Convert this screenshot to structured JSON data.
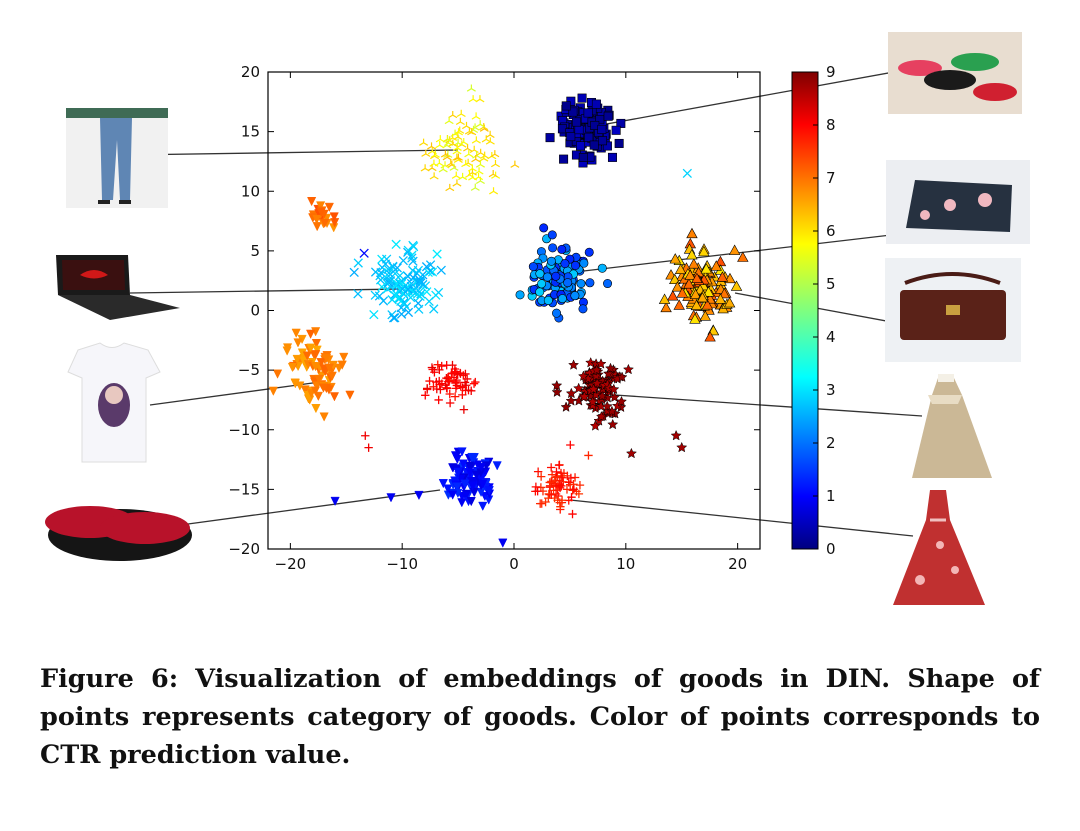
{
  "chart_data": {
    "type": "scatter",
    "xlim": [
      -22,
      22
    ],
    "ylim": [
      -20,
      20
    ],
    "x_ticks": [
      -20,
      -10,
      0,
      10,
      20
    ],
    "y_ticks": [
      -20,
      -15,
      -10,
      -5,
      0,
      5,
      10,
      15,
      20
    ],
    "x_tick_labels": [
      "−20",
      "−10",
      "0",
      "10",
      "20"
    ],
    "y_tick_labels": [
      "−20",
      "−15",
      "−10",
      "−5",
      "0",
      "5",
      "10",
      "15",
      "20"
    ],
    "colorbar": {
      "range": [
        0,
        9
      ],
      "ticks": [
        0,
        1,
        2,
        3,
        4,
        5,
        6,
        7,
        8,
        9
      ],
      "tick_labels": [
        "0",
        "1",
        "2",
        "3",
        "4",
        "5",
        "6",
        "7",
        "8",
        "9"
      ],
      "colormap": "jet",
      "colors": [
        "#00007f",
        "#0000ff",
        "#007fff",
        "#00ffff",
        "#7fff7f",
        "#ffff00",
        "#ff7f00",
        "#ff0000",
        "#7f0000"
      ]
    },
    "clusters": [
      {
        "category": "pants",
        "marker": "tri_up",
        "center": [
          -4.5,
          13.5
        ],
        "spread": [
          3.0,
          3.2
        ],
        "count": 90,
        "value_range": [
          5.2,
          6.2
        ],
        "image": "pants-photo"
      },
      {
        "category": "sneakers",
        "marker": "square",
        "center": [
          6.5,
          15.5
        ],
        "spread": [
          2.4,
          2.2
        ],
        "count": 120,
        "value_range": [
          0.1,
          0.6
        ],
        "image": "sneakers-photo"
      },
      {
        "category": "orange-tri-down",
        "marker": "tri_down",
        "center": [
          -17.2,
          8.0
        ],
        "spread": [
          0.8,
          1.2
        ],
        "count": 25,
        "value_range": [
          6.5,
          7.2
        ],
        "image": null
      },
      {
        "category": "laptop",
        "marker": "x",
        "center": [
          -9.5,
          2.2
        ],
        "spread": [
          2.8,
          2.2
        ],
        "count": 110,
        "value_range": [
          2.6,
          3.2
        ],
        "image": "laptop-photo"
      },
      {
        "category": "phone-case",
        "marker": "circle",
        "center": [
          4.0,
          2.7
        ],
        "spread": [
          2.5,
          2.2
        ],
        "count": 130,
        "value_range": [
          1.4,
          3.0
        ],
        "image": "phone-case-photo"
      },
      {
        "category": "handbag",
        "marker": "triangle",
        "center": [
          16.7,
          2.0
        ],
        "spread": [
          2.2,
          2.8
        ],
        "count": 120,
        "value_range": [
          5.8,
          7.2
        ],
        "image": "handbag-photo"
      },
      {
        "category": "t-shirt",
        "marker": "tri_down",
        "center": [
          -18.0,
          -5.0
        ],
        "spread": [
          2.6,
          2.8
        ],
        "count": 80,
        "value_range": [
          6.4,
          7.0
        ],
        "image": "t-shirt-photo"
      },
      {
        "category": "red-plus",
        "marker": "plus",
        "center": [
          -5.5,
          -6.0
        ],
        "spread": [
          2.0,
          1.6
        ],
        "count": 60,
        "value_range": [
          7.7,
          8.1
        ],
        "image": null
      },
      {
        "category": "coat",
        "marker": "star",
        "center": [
          7.5,
          -6.5
        ],
        "spread": [
          2.4,
          2.2
        ],
        "count": 110,
        "value_range": [
          8.5,
          8.9
        ],
        "image": "coat-photo"
      },
      {
        "category": "slippers",
        "marker": "tri_down",
        "center": [
          -4.0,
          -14.0
        ],
        "spread": [
          2.0,
          1.8
        ],
        "count": 100,
        "value_range": [
          0.8,
          1.6
        ],
        "image": "slippers-photo"
      },
      {
        "category": "red-dress",
        "marker": "plus",
        "center": [
          4.2,
          -14.8
        ],
        "spread": [
          1.8,
          2.0
        ],
        "count": 70,
        "value_range": [
          7.4,
          7.9
        ],
        "image": "red-dress-photo"
      }
    ],
    "outliers": [
      {
        "x": 15.5,
        "y": 11.5,
        "marker": "x",
        "value": 3.0
      },
      {
        "x": -13.4,
        "y": 4.8,
        "marker": "x",
        "value": 1.2
      },
      {
        "x": -16.0,
        "y": -16.0,
        "marker": "tri_down",
        "value": 1.0
      },
      {
        "x": -11.0,
        "y": -15.7,
        "marker": "tri_down",
        "value": 1.0
      },
      {
        "x": -8.5,
        "y": -15.5,
        "marker": "tri_down",
        "value": 1.0
      },
      {
        "x": -1.0,
        "y": -19.5,
        "marker": "tri_down",
        "value": 1.0
      },
      {
        "x": 10.5,
        "y": -12.0,
        "marker": "star",
        "value": 8.7
      },
      {
        "x": 14.5,
        "y": -10.5,
        "marker": "star",
        "value": 8.7
      },
      {
        "x": 15.0,
        "y": -11.5,
        "marker": "star",
        "value": 8.7
      },
      {
        "x": -13.0,
        "y": -11.5,
        "marker": "plus",
        "value": 8.0
      },
      {
        "x": -13.3,
        "y": -10.5,
        "marker": "plus",
        "value": 8.0
      }
    ]
  },
  "caption": "Figure 6: Visualization of embeddings of goods in DIN. Shape of points represents category of goods. Color of points corresponds to CTR prediction value."
}
